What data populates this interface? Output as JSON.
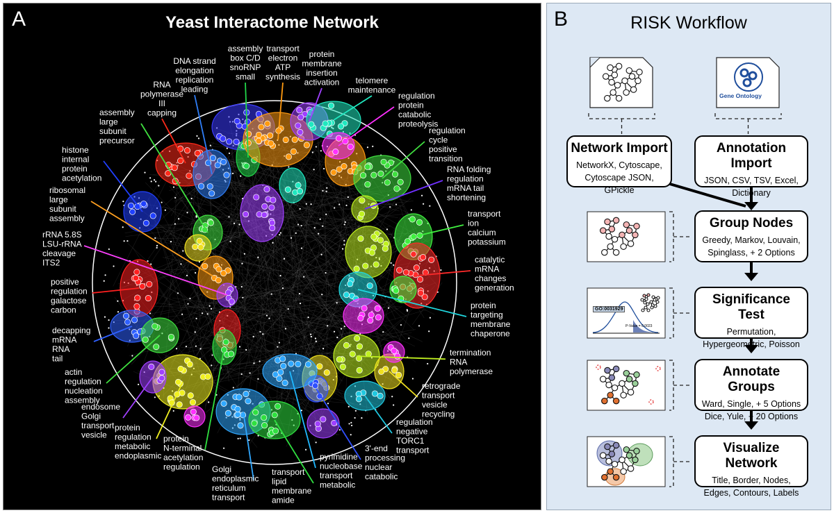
{
  "panel_a": {
    "letter": "A",
    "title": "Yeast Interactome Network",
    "labels": [
      {
        "id": "rna-pol",
        "text": "RNA\npolymerase\nIII\ncapping",
        "color": "#ff2a1a"
      },
      {
        "id": "dna-strand",
        "text": "DNA strand\nelongation\nreplication\nleading",
        "color": "#2f7df5"
      },
      {
        "id": "snorna",
        "text": "assembly\nbox C/D\nsnoRNP\nsmall",
        "color": "#22d84a"
      },
      {
        "id": "atp",
        "text": "transport\nelectron\nATP\nsynthesis",
        "color": "#ff9a10"
      },
      {
        "id": "membrane-ins",
        "text": "protein\nmembrane\ninsertion\nactivation",
        "color": "#a040ff"
      },
      {
        "id": "telomere",
        "text": "telomere\nmaintenance",
        "color": "#20e8c0"
      },
      {
        "id": "proteolysis",
        "text": "regulation\nprotein\ncatabolic\nproteolysis",
        "color": "#ff30ff"
      },
      {
        "id": "cell-cycle",
        "text": "regulation\ncycle\npositive\ntransition",
        "color": "#40e040"
      },
      {
        "id": "rna-folding",
        "text": "RNA folding\nregulation\nmRNA tail\nshortening",
        "color": "#7030ff"
      },
      {
        "id": "calcium",
        "text": "transport\nion\ncalcium\npotassium",
        "color": "#40f040"
      },
      {
        "id": "catalytic",
        "text": "catalytic\nmRNA\nchanges\ngeneration",
        "color": "#ff2a2a"
      },
      {
        "id": "chaperone",
        "text": "protein\ntargeting\nmembrane\nchaperone",
        "color": "#20d8e0"
      },
      {
        "id": "termination",
        "text": "termination\nRNA\npolymerase",
        "color": "#c0f020"
      },
      {
        "id": "retrograde",
        "text": "retrograde\ntransport\nvesicle\nrecycling",
        "color": "#f0e020"
      },
      {
        "id": "torc1",
        "text": "regulation\nnegative\nTORC1\ntransport",
        "color": "#20c8e0"
      },
      {
        "id": "three-end",
        "text": "3'-end\nprocessing\nnuclear\ncatabolic",
        "color": "#3050ff"
      },
      {
        "id": "pyrimidine",
        "text": "pyrimidine\nnucleobase\ntransport\nmetabolic",
        "color": "#20b8ff"
      },
      {
        "id": "lipid",
        "text": "transport\nlipid\nmembrane\namide",
        "color": "#30e040"
      },
      {
        "id": "golgi-er",
        "text": "Golgi\nendoplasmic\nreticulum\ntransport",
        "color": "#30a8ff"
      },
      {
        "id": "n-terminal",
        "text": "protein\nN-terminal\nacetylation\nregulation",
        "color": "#30e040"
      },
      {
        "id": "metabolic-er",
        "text": "protein\nregulation\nmetabolic\nendoplasmic",
        "color": "#f0f020"
      },
      {
        "id": "endosome",
        "text": "endosome\nGolgi\ntransport\nvesicle",
        "color": "#a040ff"
      },
      {
        "id": "actin",
        "text": "actin\nregulation\nnucleation\nassembly",
        "color": "#40e040"
      },
      {
        "id": "decapping",
        "text": "decapping\nmRNA\nRNA\ntail",
        "color": "#2f60ff"
      },
      {
        "id": "galactose",
        "text": "positive\nregulation\ngalactose\ncarbon",
        "color": "#ff2020"
      },
      {
        "id": "rrna",
        "text": "rRNA 5.8S\nLSU-rRNA\ncleavage\nITS2",
        "color": "#ff40ff"
      },
      {
        "id": "ribosomal",
        "text": "ribosomal\nlarge\nsubunit\nassembly",
        "color": "#ffa020"
      },
      {
        "id": "histone",
        "text": "histone\ninternal\nprotein\nacetylation",
        "color": "#2040ff"
      },
      {
        "id": "precursor",
        "text": "assembly\nlarge\nsubunit\nprecursor",
        "color": "#40e040"
      }
    ]
  },
  "panel_b": {
    "letter": "B",
    "title": "RISK Workflow",
    "go_logo_text": "Gene Ontology",
    "go_term": "GO:0031929",
    "p_value": "P-Value = 0.0023",
    "steps": [
      {
        "id": "network-import",
        "title": "Network Import",
        "desc": "NetworkX, Cytoscape,\nCytoscape JSON, GPickle"
      },
      {
        "id": "annotation-import",
        "title": "Annotation Import",
        "desc": "JSON, CSV, TSV, Excel,\nDictionary"
      },
      {
        "id": "group-nodes",
        "title": "Group Nodes",
        "desc": "Greedy, Markov, Louvain,\nSpinglass, + 2 Options"
      },
      {
        "id": "significance-test",
        "title": "Significance Test",
        "desc": "Permutation,\nHypergeometric, Poisson"
      },
      {
        "id": "annotate-groups",
        "title": "Annotate Groups",
        "desc": "Ward, Single, + 5 Options\nDice, Yule, + 20 Options"
      },
      {
        "id": "visualize-network",
        "title": "Visualize Network",
        "desc": "Title, Border, Nodes,\nEdges, Contours, Labels"
      }
    ]
  }
}
